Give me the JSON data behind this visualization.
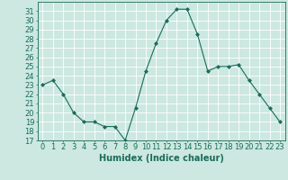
{
  "x": [
    0,
    1,
    2,
    3,
    4,
    5,
    6,
    7,
    8,
    9,
    10,
    11,
    12,
    13,
    14,
    15,
    16,
    17,
    18,
    19,
    20,
    21,
    22,
    23
  ],
  "y": [
    23,
    23.5,
    22,
    20,
    19,
    19,
    18.5,
    18.5,
    17,
    20.5,
    24.5,
    27.5,
    30,
    31.2,
    31.2,
    28.5,
    24.5,
    25,
    25,
    25.2,
    23.5,
    22,
    20.5,
    19
  ],
  "xlabel": "Humidex (Indice chaleur)",
  "ylim": [
    17,
    32
  ],
  "xlim": [
    -0.5,
    23.5
  ],
  "yticks": [
    17,
    18,
    19,
    20,
    21,
    22,
    23,
    24,
    25,
    26,
    27,
    28,
    29,
    30,
    31
  ],
  "xticks": [
    0,
    1,
    2,
    3,
    4,
    5,
    6,
    7,
    8,
    9,
    10,
    11,
    12,
    13,
    14,
    15,
    16,
    17,
    18,
    19,
    20,
    21,
    22,
    23
  ],
  "line_color": "#1a6b5a",
  "marker": "D",
  "marker_size": 2.0,
  "bg_color": "#cce8e0",
  "grid_color": "#ffffff",
  "tick_label_color": "#1a6b5a",
  "axis_label_color": "#1a6b5a",
  "tick_fontsize": 6,
  "label_fontsize": 7
}
